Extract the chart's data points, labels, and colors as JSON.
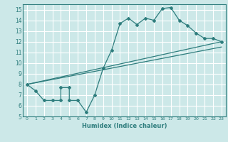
{
  "xlabel": "Humidex (Indice chaleur)",
  "xlim": [
    -0.5,
    23.5
  ],
  "ylim": [
    5,
    15.5
  ],
  "xticks": [
    0,
    1,
    2,
    3,
    4,
    5,
    6,
    7,
    8,
    9,
    10,
    11,
    12,
    13,
    14,
    15,
    16,
    17,
    18,
    19,
    20,
    21,
    22,
    23
  ],
  "yticks": [
    5,
    6,
    7,
    8,
    9,
    10,
    11,
    12,
    13,
    14,
    15
  ],
  "bg_color": "#cce8e8",
  "grid_color": "#ffffff",
  "line_color": "#2e7d7d",
  "line1_x": [
    0,
    1,
    2,
    3,
    4,
    4,
    5,
    5,
    6,
    7,
    8,
    9,
    10,
    11,
    12,
    13,
    14,
    15,
    16,
    17,
    18,
    19,
    20,
    21,
    22,
    23
  ],
  "line1_y": [
    8.0,
    7.4,
    6.5,
    6.5,
    6.5,
    7.7,
    7.7,
    6.5,
    6.5,
    5.4,
    7.0,
    9.5,
    11.2,
    13.7,
    14.2,
    13.6,
    14.2,
    14.0,
    15.1,
    15.2,
    14.0,
    13.5,
    12.8,
    12.3,
    12.3,
    12.0
  ],
  "line2_x": [
    0,
    23
  ],
  "line2_y": [
    8.0,
    12.0
  ],
  "line3_x": [
    0,
    23
  ],
  "line3_y": [
    8.0,
    11.5
  ]
}
